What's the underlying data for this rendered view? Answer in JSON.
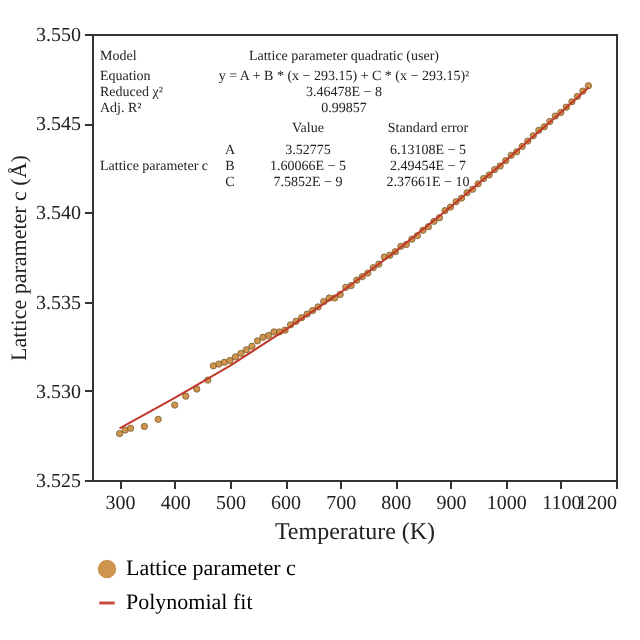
{
  "chart_data": {
    "type": "scatter",
    "xlabel": "Temperature (K)",
    "ylabel": "Lattice parameter c (Å)",
    "xlim": [
      250,
      1200
    ],
    "xticks": [
      300,
      400,
      500,
      600,
      700,
      800,
      900,
      1000,
      1100,
      1200
    ],
    "ylim": [
      3.525,
      3.55
    ],
    "yticks": [
      3.525,
      {
        "value": 3.53,
        "label": "3.530"
      },
      3.535,
      {
        "value": 3.54,
        "label": "3.540"
      },
      3.545,
      {
        "value": 3.55,
        "label": "3.550"
      }
    ],
    "grid": false,
    "legend": "bottom left",
    "annotations": [
      "Model",
      "Lattice parameter quadratic (user)",
      "Equation",
      "y = A + B * (x − 293.15) + C * (x − 293.15)²",
      "Reduced χ²",
      "3.46478E − 8",
      "Adj. R²",
      "0.99857",
      "Value",
      "Standard error",
      "Lattice parameter c",
      "A",
      "3.52775",
      "6.13108E − 5",
      "B",
      "1.60066E − 5",
      "2.49454E − 7",
      "C",
      "7.5852E − 9",
      "2.37661E − 10"
    ],
    "series": [
      {
        "name": "Lattice parameter c",
        "marker": "circle",
        "color": "#c98a3c",
        "x": [
          300,
          310,
          320,
          345,
          370,
          400,
          420,
          440,
          460,
          470,
          480,
          490,
          500,
          510,
          520,
          530,
          540,
          550,
          560,
          570,
          580,
          590,
          600,
          610,
          620,
          630,
          640,
          650,
          660,
          670,
          680,
          690,
          700,
          710,
          720,
          730,
          740,
          750,
          760,
          770,
          780,
          790,
          800,
          810,
          820,
          830,
          840,
          850,
          860,
          870,
          880,
          890,
          900,
          910,
          920,
          930,
          940,
          950,
          960,
          970,
          980,
          990,
          1000,
          1010,
          1020,
          1030,
          1040,
          1050,
          1060,
          1070,
          1080,
          1090,
          1100,
          1110,
          1120,
          1130,
          1140,
          1150
        ],
        "values": [
          3.5276,
          3.5278,
          3.5279,
          3.528,
          3.5284,
          3.5292,
          3.5297,
          3.5301,
          3.5306,
          3.5314,
          3.5315,
          3.5316,
          3.5317,
          3.5319,
          3.5321,
          3.5323,
          3.5325,
          3.5328,
          3.533,
          3.5331,
          3.5333,
          3.5333,
          3.5334,
          3.5337,
          3.5339,
          3.5341,
          3.5343,
          3.5345,
          3.5347,
          3.535,
          3.5352,
          3.5352,
          3.5354,
          3.5358,
          3.5359,
          3.5362,
          3.5364,
          3.5366,
          3.5369,
          3.5371,
          3.5375,
          3.5376,
          3.5378,
          3.5381,
          3.5382,
          3.5385,
          3.5387,
          3.539,
          3.5392,
          3.5395,
          3.5397,
          3.5401,
          3.5403,
          3.5406,
          3.5408,
          3.5411,
          3.5413,
          3.5416,
          3.5419,
          3.5421,
          3.5424,
          3.5426,
          3.5429,
          3.5432,
          3.5434,
          3.5437,
          3.544,
          3.5443,
          3.5446,
          3.5448,
          3.5451,
          3.5454,
          3.5456,
          3.5459,
          3.5462,
          3.5465,
          3.5468,
          3.5471
        ]
      },
      {
        "name": "Polynomial fit",
        "type": "line",
        "color": "#c0392b",
        "x": [
          300,
          400,
          500,
          600,
          700,
          800,
          900,
          1000,
          1100,
          1150
        ],
        "values": [
          3.5279,
          3.5296,
          3.5314,
          3.5334,
          3.5355,
          3.5378,
          3.5403,
          3.5429,
          3.5456,
          3.547
        ]
      }
    ]
  }
}
